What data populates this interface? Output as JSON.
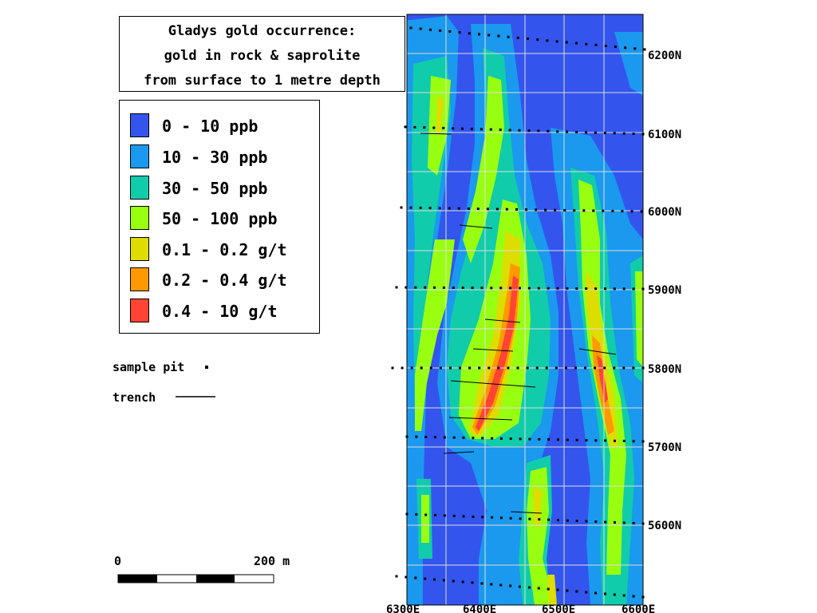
{
  "title": {
    "lines": [
      "Gladys gold occurrence:",
      "gold in rock & saprolite",
      "from surface to 1 metre depth"
    ]
  },
  "legend": [
    {
      "label": "0 - 10 ppb",
      "color": "#3355ee"
    },
    {
      "label": "10 - 30 ppb",
      "color": "#1a99ee"
    },
    {
      "label": "30 - 50 ppb",
      "color": "#11ccaa"
    },
    {
      "label": "50 - 100 ppb",
      "color": "#99ff11"
    },
    {
      "label": "0.1 - 0.2 g/t",
      "color": "#dddd00"
    },
    {
      "label": "0.2 - 0.4 g/t",
      "color": "#ff9900"
    },
    {
      "label": "0.4 - 10 g/t",
      "color": "#ff4433"
    }
  ],
  "symbols": {
    "sample_pit": "sample pit",
    "trench": "trench"
  },
  "scale_bar": {
    "start_label": "0",
    "end_label": "200 m"
  },
  "axes": {
    "northing_labels": [
      "6200N",
      "6100N",
      "6000N",
      "5900N",
      "5800N",
      "5700N",
      "5600N"
    ],
    "easting_labels": [
      "6300E",
      "6400E",
      "6500E",
      "6600E"
    ]
  }
}
